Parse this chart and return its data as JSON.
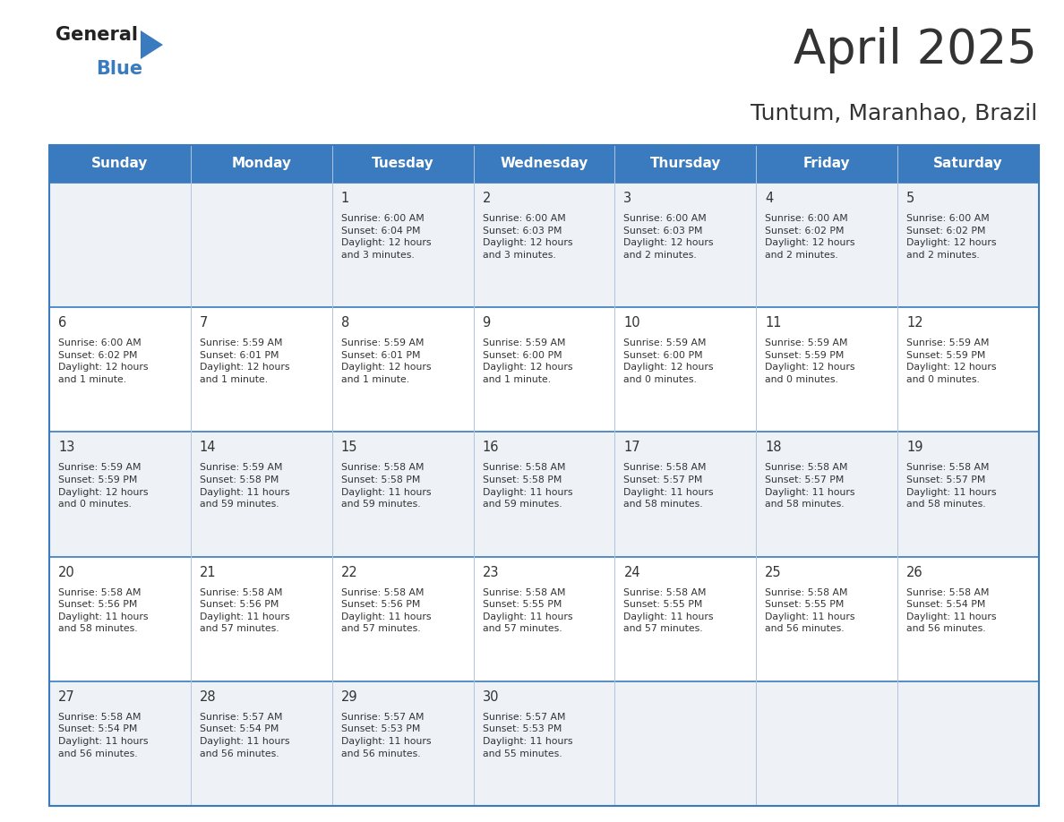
{
  "title": "April 2025",
  "subtitle": "Tuntum, Maranhao, Brazil",
  "header_bg": "#3a7abf",
  "header_text_color": "#ffffff",
  "cell_bg_light": "#eef2f7",
  "cell_bg_white": "#ffffff",
  "days_of_week": [
    "Sunday",
    "Monday",
    "Tuesday",
    "Wednesday",
    "Thursday",
    "Friday",
    "Saturday"
  ],
  "calendar_data": [
    [
      "",
      "",
      "1\nSunrise: 6:00 AM\nSunset: 6:04 PM\nDaylight: 12 hours\nand 3 minutes.",
      "2\nSunrise: 6:00 AM\nSunset: 6:03 PM\nDaylight: 12 hours\nand 3 minutes.",
      "3\nSunrise: 6:00 AM\nSunset: 6:03 PM\nDaylight: 12 hours\nand 2 minutes.",
      "4\nSunrise: 6:00 AM\nSunset: 6:02 PM\nDaylight: 12 hours\nand 2 minutes.",
      "5\nSunrise: 6:00 AM\nSunset: 6:02 PM\nDaylight: 12 hours\nand 2 minutes."
    ],
    [
      "6\nSunrise: 6:00 AM\nSunset: 6:02 PM\nDaylight: 12 hours\nand 1 minute.",
      "7\nSunrise: 5:59 AM\nSunset: 6:01 PM\nDaylight: 12 hours\nand 1 minute.",
      "8\nSunrise: 5:59 AM\nSunset: 6:01 PM\nDaylight: 12 hours\nand 1 minute.",
      "9\nSunrise: 5:59 AM\nSunset: 6:00 PM\nDaylight: 12 hours\nand 1 minute.",
      "10\nSunrise: 5:59 AM\nSunset: 6:00 PM\nDaylight: 12 hours\nand 0 minutes.",
      "11\nSunrise: 5:59 AM\nSunset: 5:59 PM\nDaylight: 12 hours\nand 0 minutes.",
      "12\nSunrise: 5:59 AM\nSunset: 5:59 PM\nDaylight: 12 hours\nand 0 minutes."
    ],
    [
      "13\nSunrise: 5:59 AM\nSunset: 5:59 PM\nDaylight: 12 hours\nand 0 minutes.",
      "14\nSunrise: 5:59 AM\nSunset: 5:58 PM\nDaylight: 11 hours\nand 59 minutes.",
      "15\nSunrise: 5:58 AM\nSunset: 5:58 PM\nDaylight: 11 hours\nand 59 minutes.",
      "16\nSunrise: 5:58 AM\nSunset: 5:58 PM\nDaylight: 11 hours\nand 59 minutes.",
      "17\nSunrise: 5:58 AM\nSunset: 5:57 PM\nDaylight: 11 hours\nand 58 minutes.",
      "18\nSunrise: 5:58 AM\nSunset: 5:57 PM\nDaylight: 11 hours\nand 58 minutes.",
      "19\nSunrise: 5:58 AM\nSunset: 5:57 PM\nDaylight: 11 hours\nand 58 minutes."
    ],
    [
      "20\nSunrise: 5:58 AM\nSunset: 5:56 PM\nDaylight: 11 hours\nand 58 minutes.",
      "21\nSunrise: 5:58 AM\nSunset: 5:56 PM\nDaylight: 11 hours\nand 57 minutes.",
      "22\nSunrise: 5:58 AM\nSunset: 5:56 PM\nDaylight: 11 hours\nand 57 minutes.",
      "23\nSunrise: 5:58 AM\nSunset: 5:55 PM\nDaylight: 11 hours\nand 57 minutes.",
      "24\nSunrise: 5:58 AM\nSunset: 5:55 PM\nDaylight: 11 hours\nand 57 minutes.",
      "25\nSunrise: 5:58 AM\nSunset: 5:55 PM\nDaylight: 11 hours\nand 56 minutes.",
      "26\nSunrise: 5:58 AM\nSunset: 5:54 PM\nDaylight: 11 hours\nand 56 minutes."
    ],
    [
      "27\nSunrise: 5:58 AM\nSunset: 5:54 PM\nDaylight: 11 hours\nand 56 minutes.",
      "28\nSunrise: 5:57 AM\nSunset: 5:54 PM\nDaylight: 11 hours\nand 56 minutes.",
      "29\nSunrise: 5:57 AM\nSunset: 5:53 PM\nDaylight: 11 hours\nand 56 minutes.",
      "30\nSunrise: 5:57 AM\nSunset: 5:53 PM\nDaylight: 11 hours\nand 55 minutes.",
      "",
      "",
      ""
    ]
  ],
  "border_color": "#3a7abf",
  "divider_color": "#b0c4de",
  "text_color": "#333333",
  "logo_general_color": "#222222",
  "logo_blue_color": "#3a7abf",
  "fig_width": 11.88,
  "fig_height": 9.18,
  "dpi": 100
}
